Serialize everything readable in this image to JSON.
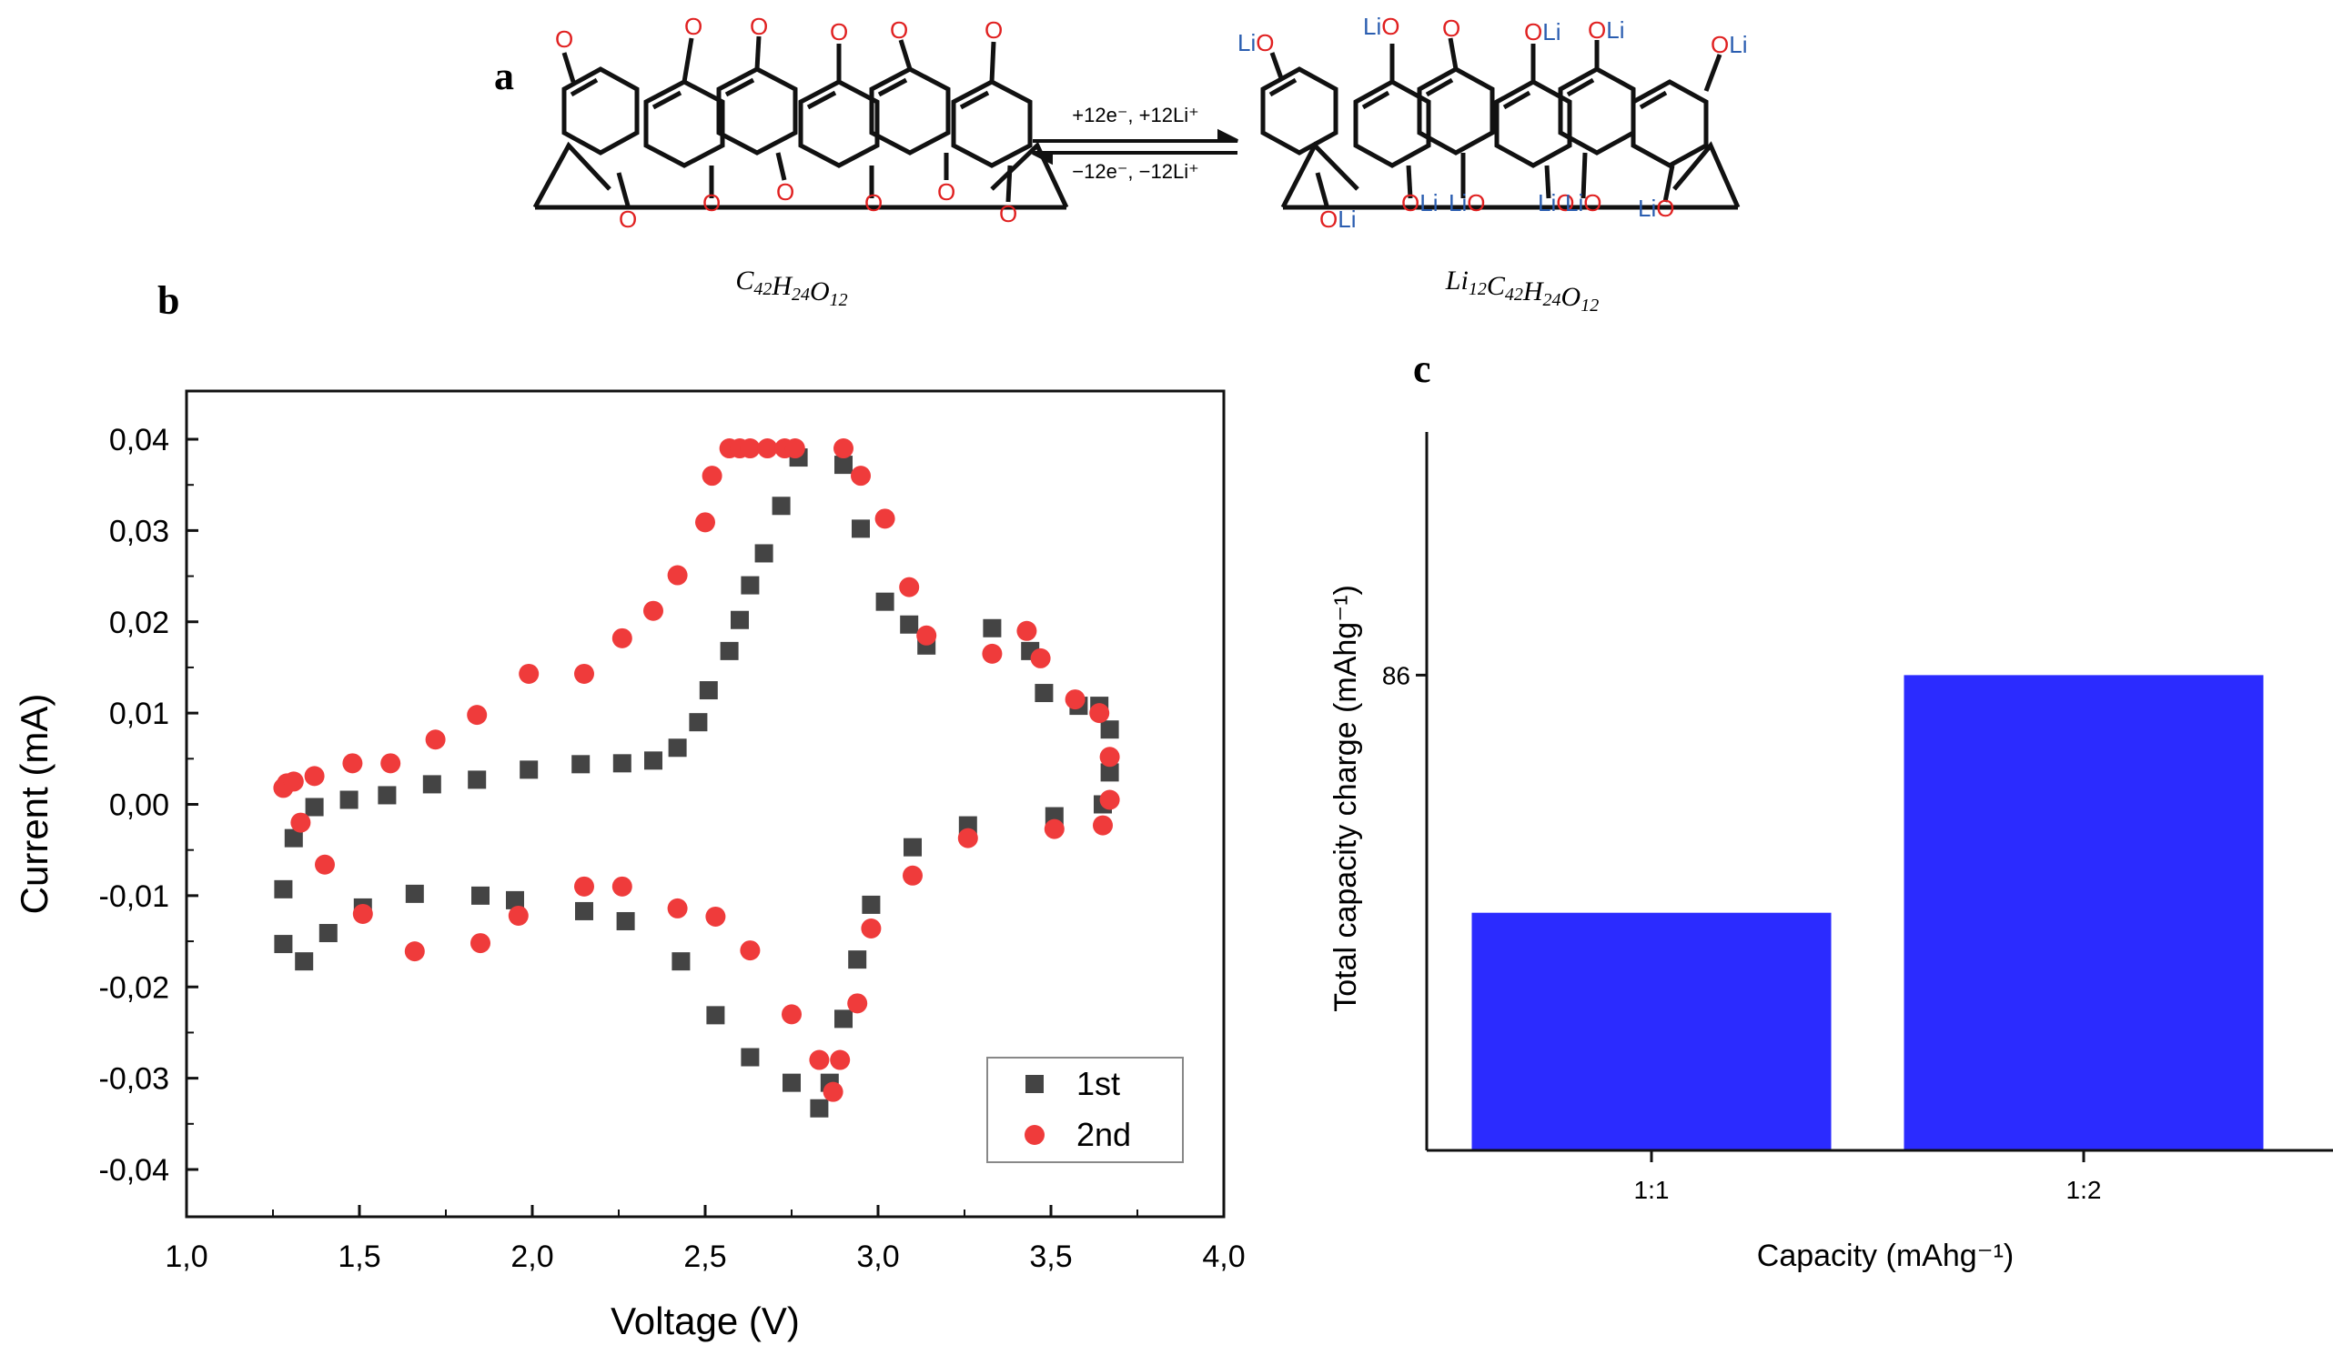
{
  "figure": {
    "panel_labels": [
      "a",
      "b",
      "c"
    ]
  },
  "scheme": {
    "reactant_formula": "C42H24O12",
    "product_formula": "Li12C42H24O12",
    "arrow_top": "+12e⁻, +12Li⁺",
    "arrow_bottom": "−12e⁻, −12Li⁺",
    "atom_o": "O",
    "atom_li": "Li",
    "colors": {
      "oxygen": "#e02020",
      "lithium": "#2a5db0",
      "bond": "#111111"
    }
  },
  "chart_data": [
    {
      "type": "scatter",
      "panel": "b",
      "xlabel": "Voltage (V)",
      "ylabel": "Current (mA)",
      "xlim": [
        1.0,
        4.0
      ],
      "ylim": [
        -0.04,
        0.04
      ],
      "xticks": [
        "1,0",
        "1,5",
        "2,0",
        "2,5",
        "3,0",
        "3,5",
        "4,0"
      ],
      "yticks": [
        "-0,04",
        "-0,03",
        "-0,02",
        "-0,01",
        "0,00",
        "0,01",
        "0,02",
        "0,03",
        "0,04"
      ],
      "xtick_values": [
        1.0,
        1.5,
        2.0,
        2.5,
        3.0,
        3.5,
        4.0
      ],
      "ytick_values": [
        -0.04,
        -0.03,
        -0.02,
        -0.01,
        0.0,
        0.01,
        0.02,
        0.03,
        0.04
      ],
      "legend_position": "bottom-right",
      "grid": false,
      "series": [
        {
          "name": "1st",
          "marker": "square",
          "color": "#444444",
          "points": [
            [
              1.28,
              -0.0093
            ],
            [
              1.28,
              -0.0153
            ],
            [
              1.31,
              -0.0037
            ],
            [
              1.34,
              -0.0172
            ],
            [
              1.37,
              -0.0003
            ],
            [
              1.41,
              -0.0141
            ],
            [
              1.47,
              0.0005
            ],
            [
              1.51,
              -0.0113
            ],
            [
              1.58,
              0.001
            ],
            [
              1.66,
              -0.0098
            ],
            [
              1.71,
              0.0022
            ],
            [
              1.84,
              0.0027
            ],
            [
              1.85,
              -0.01
            ],
            [
              1.95,
              -0.0105
            ],
            [
              1.99,
              0.0038
            ],
            [
              2.14,
              0.0044
            ],
            [
              2.15,
              -0.0117
            ],
            [
              2.26,
              0.0045
            ],
            [
              2.27,
              -0.0128
            ],
            [
              2.35,
              0.0048
            ],
            [
              2.42,
              0.0062
            ],
            [
              2.43,
              -0.0172
            ],
            [
              2.48,
              0.009
            ],
            [
              2.51,
              0.0125
            ],
            [
              2.53,
              -0.0231
            ],
            [
              2.57,
              0.0168
            ],
            [
              2.6,
              0.0202
            ],
            [
              2.63,
              0.024
            ],
            [
              2.63,
              -0.0277
            ],
            [
              2.67,
              0.0275
            ],
            [
              2.72,
              0.0327
            ],
            [
              2.75,
              -0.0305
            ],
            [
              2.77,
              0.038
            ],
            [
              2.83,
              -0.0333
            ],
            [
              2.86,
              -0.0305
            ],
            [
              2.9,
              0.0372
            ],
            [
              2.9,
              -0.0235
            ],
            [
              2.94,
              -0.017
            ],
            [
              2.95,
              0.0302
            ],
            [
              2.98,
              -0.011
            ],
            [
              3.02,
              0.0222
            ],
            [
              3.09,
              0.0197
            ],
            [
              3.1,
              -0.0047
            ],
            [
              3.14,
              0.0174
            ],
            [
              3.26,
              -0.0023
            ],
            [
              3.33,
              0.0193
            ],
            [
              3.44,
              0.0168
            ],
            [
              3.48,
              0.0122
            ],
            [
              3.51,
              -0.0013
            ],
            [
              3.58,
              0.0108
            ],
            [
              3.64,
              0.0108
            ],
            [
              3.65,
              0.0
            ],
            [
              3.67,
              0.0082
            ],
            [
              3.67,
              0.0035
            ]
          ]
        },
        {
          "name": "2nd",
          "marker": "circle",
          "color": "#ef3b3b",
          "points": [
            [
              1.28,
              0.0018
            ],
            [
              1.29,
              0.0023
            ],
            [
              1.31,
              0.0025
            ],
            [
              1.33,
              -0.002
            ],
            [
              1.37,
              0.0031
            ],
            [
              1.4,
              -0.0066
            ],
            [
              1.48,
              0.0045
            ],
            [
              1.51,
              -0.012
            ],
            [
              1.59,
              0.0045
            ],
            [
              1.66,
              -0.0161
            ],
            [
              1.72,
              0.0071
            ],
            [
              1.84,
              0.0098
            ],
            [
              1.85,
              -0.0152
            ],
            [
              1.96,
              -0.0122
            ],
            [
              1.99,
              0.0143
            ],
            [
              2.15,
              0.0143
            ],
            [
              2.15,
              -0.009
            ],
            [
              2.26,
              0.0182
            ],
            [
              2.26,
              -0.009
            ],
            [
              2.35,
              0.0212
            ],
            [
              2.42,
              0.0251
            ],
            [
              2.42,
              -0.0114
            ],
            [
              2.5,
              0.0309
            ],
            [
              2.52,
              0.036
            ],
            [
              2.53,
              -0.0123
            ],
            [
              2.57,
              0.039
            ],
            [
              2.6,
              0.039
            ],
            [
              2.63,
              0.039
            ],
            [
              2.63,
              -0.016
            ],
            [
              2.68,
              0.039
            ],
            [
              2.73,
              0.039
            ],
            [
              2.75,
              -0.023
            ],
            [
              2.76,
              0.039
            ],
            [
              2.83,
              -0.028
            ],
            [
              2.87,
              -0.0315
            ],
            [
              2.9,
              0.039
            ],
            [
              2.89,
              -0.028
            ],
            [
              2.94,
              -0.0218
            ],
            [
              2.95,
              0.036
            ],
            [
              2.98,
              -0.0136
            ],
            [
              3.02,
              0.0313
            ],
            [
              3.09,
              0.0238
            ],
            [
              3.1,
              -0.0078
            ],
            [
              3.14,
              0.0185
            ],
            [
              3.26,
              -0.0037
            ],
            [
              3.33,
              0.0165
            ],
            [
              3.43,
              0.019
            ],
            [
              3.47,
              0.016
            ],
            [
              3.51,
              -0.0027
            ],
            [
              3.57,
              0.0115
            ],
            [
              3.64,
              0.01
            ],
            [
              3.65,
              -0.0023
            ],
            [
              3.67,
              0.0052
            ],
            [
              3.67,
              0.0005
            ]
          ]
        }
      ]
    },
    {
      "type": "bar",
      "panel": "c",
      "xlabel": "Capacity (mAhg⁻¹)",
      "ylabel": "Total capacity charge (mAhg⁻¹)",
      "categories": [
        "1:1",
        "1:2"
      ],
      "values": [
        43,
        86
      ],
      "ylim": [
        0,
        130
      ],
      "yticks": [
        "86"
      ],
      "ytick_values": [
        86
      ],
      "bar_color": "#2b2bff",
      "grid": false
    }
  ]
}
